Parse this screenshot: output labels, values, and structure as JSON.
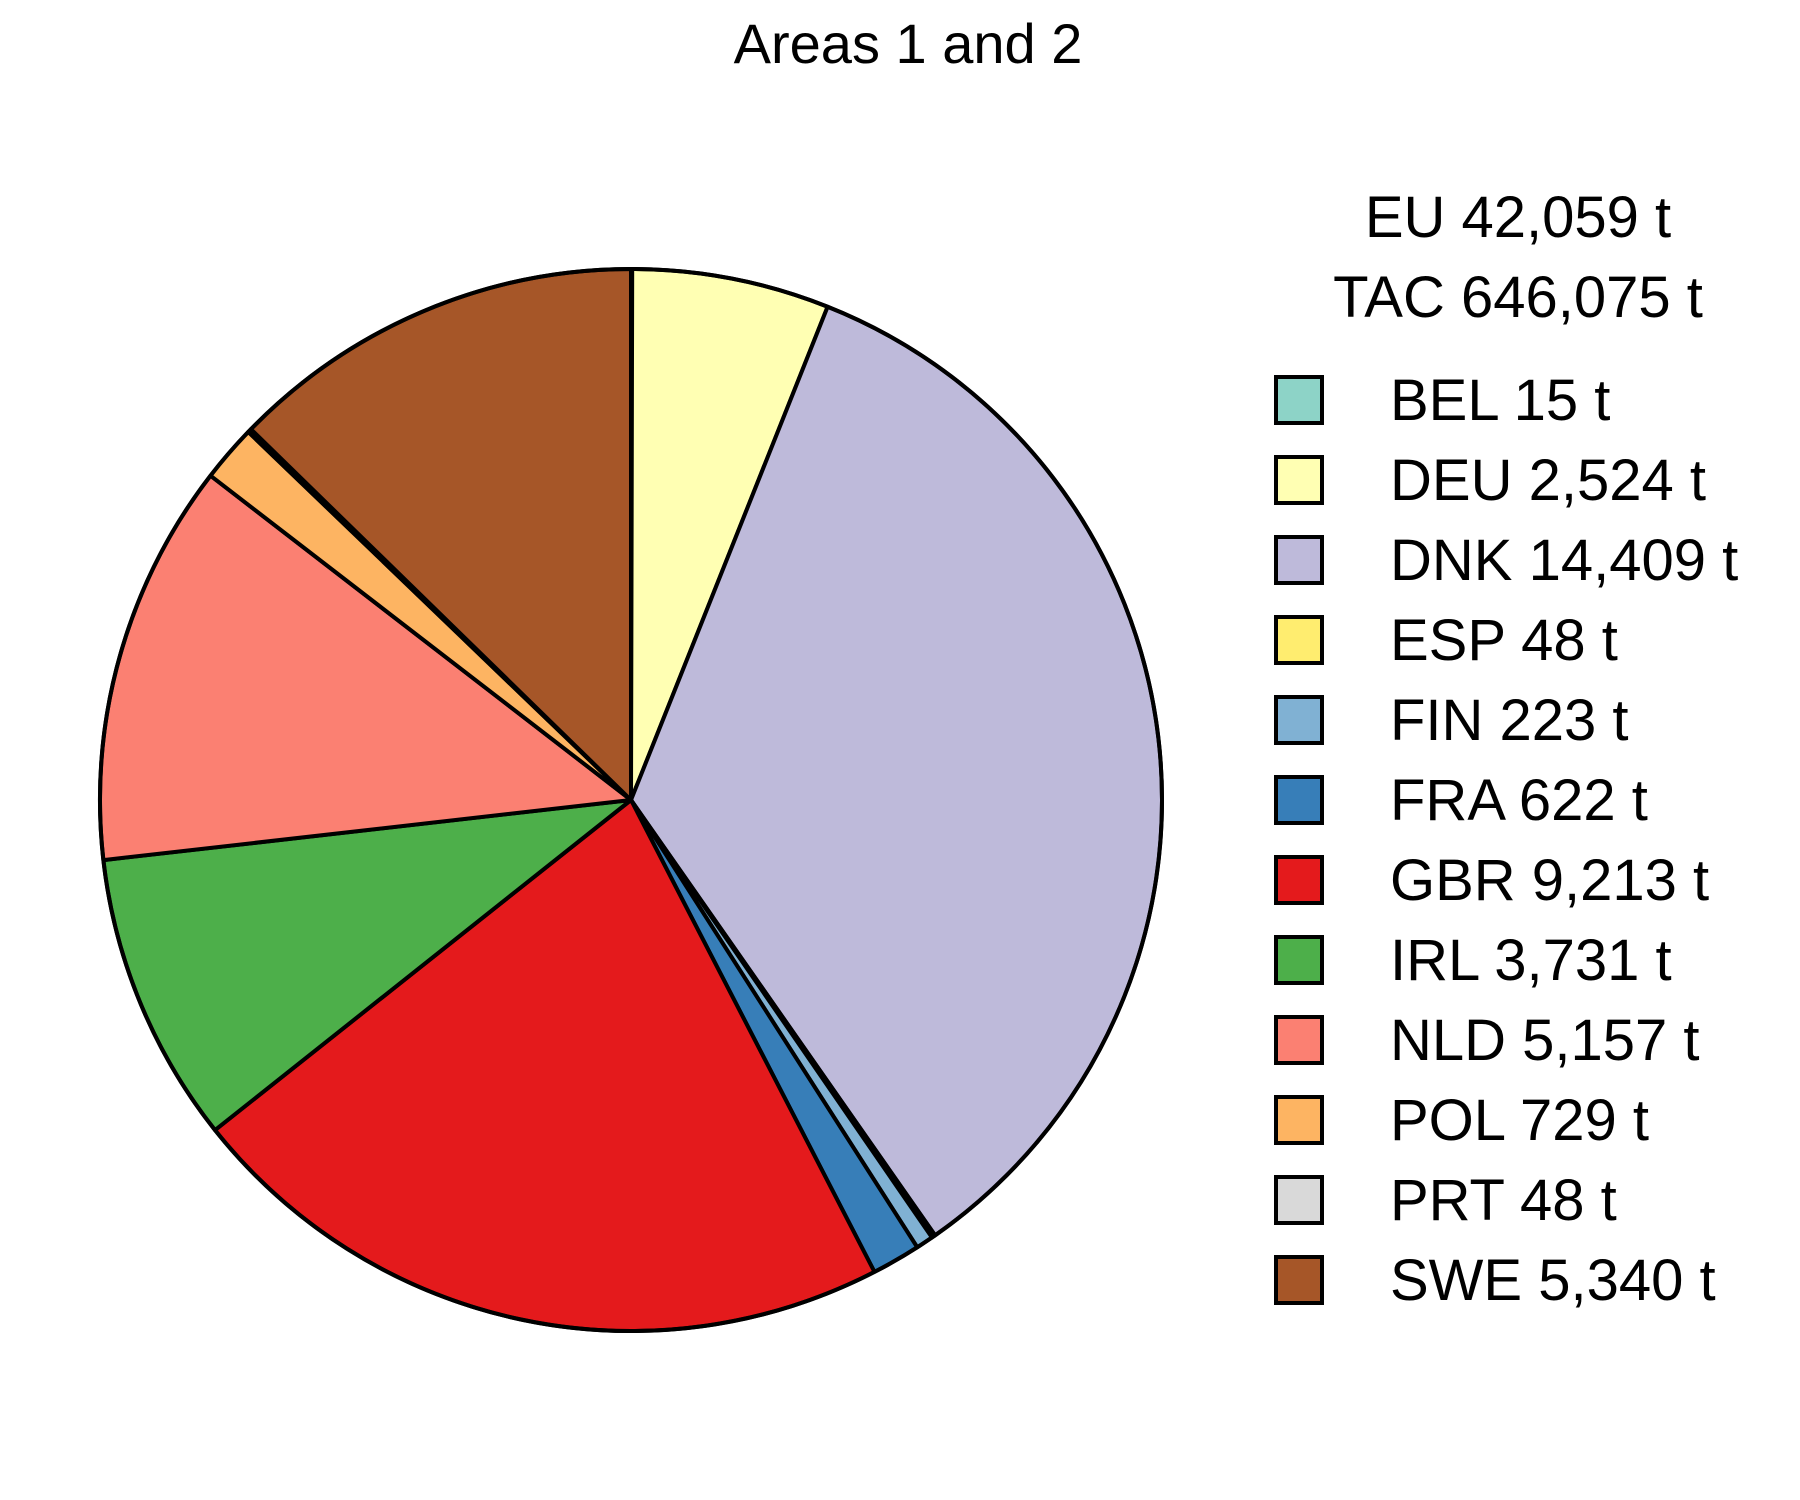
{
  "chart_data": {
    "type": "pie",
    "title": "Areas 1 and 2",
    "summary": {
      "eu_label": "EU 42,059 t",
      "tac_label": "TAC 646,075 t"
    },
    "start_angle_deg": 90,
    "direction": "clockwise",
    "legend_position": "right",
    "slices": [
      {
        "name": "BEL",
        "value": 15,
        "label": "BEL 15 t",
        "color": "#8DD3C7"
      },
      {
        "name": "DEU",
        "value": 2524,
        "label": "DEU 2,524 t",
        "color": "#FFFFB3"
      },
      {
        "name": "DNK",
        "value": 14409,
        "label": "DNK 14,409 t",
        "color": "#BEBADA"
      },
      {
        "name": "ESP",
        "value": 48,
        "label": "ESP 48 t",
        "color": "#FFED6F"
      },
      {
        "name": "FIN",
        "value": 223,
        "label": "FIN 223 t",
        "color": "#80B1D3"
      },
      {
        "name": "FRA",
        "value": 622,
        "label": "FRA 622 t",
        "color": "#377EB8"
      },
      {
        "name": "GBR",
        "value": 9213,
        "label": "GBR 9,213 t",
        "color": "#E41A1C"
      },
      {
        "name": "IRL",
        "value": 3731,
        "label": "IRL 3,731 t",
        "color": "#4DAF4A"
      },
      {
        "name": "NLD",
        "value": 5157,
        "label": "NLD 5,157 t",
        "color": "#FB8072"
      },
      {
        "name": "POL",
        "value": 729,
        "label": "POL 729 t",
        "color": "#FDB462"
      },
      {
        "name": "PRT",
        "value": 48,
        "label": "PRT 48 t",
        "color": "#D9D9D9"
      },
      {
        "name": "SWE",
        "value": 5340,
        "label": "SWE 5,340 t",
        "color": "#A65628"
      }
    ]
  }
}
